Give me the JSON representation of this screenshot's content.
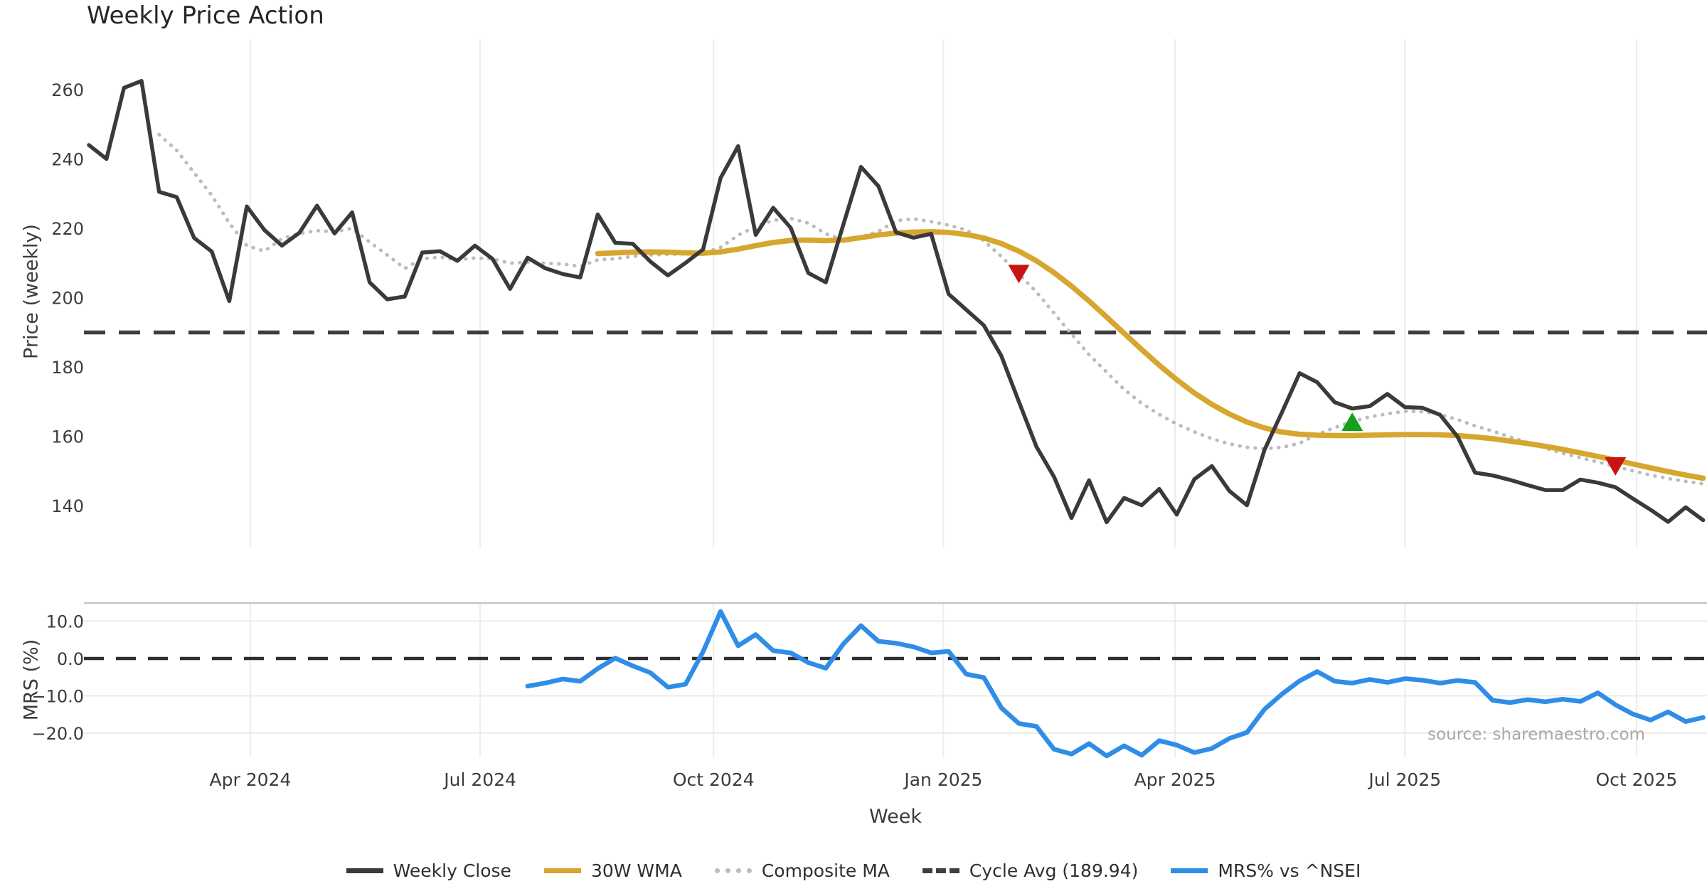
{
  "title": "Weekly Price Action",
  "source_note": "source: sharemaestro.com",
  "colors": {
    "close": "#3a3a3a",
    "wma": "#d6a62e",
    "composite": "#bcbcbc",
    "cycle_avg": "#3f3f3f",
    "mrs": "#2f8de8",
    "sell_marker": "#c81414",
    "buy_marker": "#16a01e",
    "grid_vertical": "#ededed",
    "grid_horizontal": "#ebebeb",
    "panel_border": "#c6c6c6",
    "tick_text": "#3c3c3c"
  },
  "legend": {
    "items": [
      {
        "label": "Weekly Close",
        "swatch": "solid",
        "color": "#3a3a3a"
      },
      {
        "label": "30W WMA",
        "swatch": "solid",
        "color": "#d6a62e"
      },
      {
        "label": "Composite MA",
        "swatch": "dotted",
        "color": "#bcbcbc"
      },
      {
        "label": "Cycle Avg (189.94)",
        "swatch": "dashed",
        "color": "#3f3f3f"
      },
      {
        "label": "MRS% vs ^NSEI",
        "swatch": "solid",
        "color": "#2f8de8"
      }
    ]
  },
  "chart_data": [
    {
      "type": "line",
      "title": "Weekly Price Action",
      "xlabel": "Week",
      "ylabel": "Price (weekly)",
      "x_unit": "weekly points, Feb 2024 - Nov 2025",
      "x_tick_labels": [
        "Apr 2024",
        "Jul 2024",
        "Oct 2024",
        "Jan 2025",
        "Apr 2025",
        "Jul 2025",
        "Oct 2025"
      ],
      "x_tick_weeks": [
        9.2,
        22.3,
        35.6,
        48.7,
        61.9,
        75.0,
        88.2
      ],
      "ylim": [
        128,
        274.5
      ],
      "yticks": [
        140,
        160,
        180,
        200,
        220,
        240,
        260
      ],
      "grid": "vertical-only",
      "legend_position": "lower-center-outside",
      "cycle_avg_value": 189.94,
      "series": [
        {
          "name": "Weekly Close",
          "style": "solid",
          "start_week": 0,
          "values": [
            244.0,
            240.0,
            260.5,
            262.5,
            230.5,
            229.0,
            217.2,
            213.3,
            199.0,
            226.3,
            219.5,
            215.0,
            218.7,
            226.5,
            218.5,
            224.6,
            204.4,
            199.5,
            200.3,
            213.0,
            213.4,
            210.6,
            215.0,
            211.2,
            202.5,
            211.5,
            208.5,
            206.8,
            205.8,
            224.0,
            215.8,
            215.5,
            210.4,
            206.4,
            210.0,
            213.9,
            234.5,
            243.7,
            218.1,
            225.9,
            220.1,
            207.1,
            204.4,
            221.1,
            237.7,
            232.1,
            218.8,
            217.3,
            218.4,
            201.0,
            196.5,
            192.0,
            183.2,
            170.0,
            157.0,
            148.3,
            136.4,
            147.3,
            135.2,
            142.2,
            140.1,
            144.8,
            137.4,
            147.6,
            151.4,
            144.2,
            140.1,
            156.1,
            167.0,
            178.2,
            175.6,
            169.8,
            168.0,
            168.7,
            172.2,
            168.4,
            168.2,
            166.2,
            159.9,
            149.5,
            148.7,
            147.4,
            145.9,
            144.5,
            144.5,
            147.5,
            146.6,
            145.3,
            142.0,
            138.8,
            135.3,
            139.5,
            135.8
          ]
        },
        {
          "name": "30W WMA",
          "style": "solid",
          "start_week": 29,
          "values": [
            212.7,
            212.9,
            213.1,
            213.2,
            213.1,
            212.9,
            212.8,
            213.2,
            214.0,
            215.0,
            215.9,
            216.5,
            216.6,
            216.4,
            216.6,
            217.3,
            218.1,
            218.6,
            218.9,
            219.0,
            218.8,
            218.2,
            217.2,
            215.6,
            213.4,
            210.6,
            207.2,
            203.3,
            199.0,
            194.4,
            189.7,
            185.0,
            180.5,
            176.3,
            172.5,
            169.2,
            166.4,
            164.1,
            162.4,
            161.2,
            160.6,
            160.3,
            160.2,
            160.2,
            160.3,
            160.4,
            160.5,
            160.5,
            160.4,
            160.2,
            159.8,
            159.3,
            158.6,
            157.9,
            157.1,
            156.2,
            155.2,
            154.2,
            153.1,
            152.0,
            150.9,
            149.8,
            148.8,
            147.9
          ]
        },
        {
          "name": "Composite MA",
          "style": "dotted",
          "start_week": 4,
          "values": [
            247.0,
            242.5,
            236.0,
            229.5,
            221.5,
            215.0,
            213.4,
            217.0,
            218.5,
            219.3,
            219.0,
            220.0,
            216.0,
            212.3,
            208.4,
            211.2,
            211.7,
            210.9,
            211.4,
            211.2,
            209.9,
            210.2,
            209.9,
            209.7,
            209.0,
            210.9,
            211.2,
            211.9,
            212.3,
            212.5,
            212.6,
            212.8,
            214.5,
            218.0,
            220.5,
            222.3,
            222.8,
            221.5,
            218.4,
            216.7,
            217.4,
            219.1,
            222.2,
            222.7,
            221.9,
            220.9,
            219.5,
            216.4,
            211.9,
            206.8,
            201.6,
            195.5,
            189.5,
            183.5,
            178.5,
            173.5,
            169.5,
            166.3,
            163.5,
            161.3,
            159.3,
            157.8,
            156.8,
            156.4,
            156.8,
            158.0,
            160.5,
            162.5,
            164.2,
            165.6,
            166.5,
            167.2,
            167.1,
            166.3,
            164.8,
            163.0,
            161.5,
            159.8,
            158.2,
            156.6,
            155.1,
            153.8,
            152.6,
            151.3,
            150.0,
            148.8,
            147.8,
            147.0,
            146.3
          ]
        },
        {
          "name": "Cycle Avg (189.94)",
          "style": "dashed",
          "constant_value": 189.94
        }
      ],
      "markers": [
        {
          "type": "sell",
          "shape": "triangle-down",
          "week": 53,
          "value": 206.8
        },
        {
          "type": "buy",
          "shape": "triangle-up",
          "week": 72,
          "value": 164.2
        },
        {
          "type": "sell",
          "shape": "triangle-down",
          "week": 87,
          "value": 151.3
        }
      ]
    },
    {
      "type": "line",
      "xlabel": "Week",
      "ylabel": "MRS (%)",
      "ylim": [
        -27,
        15
      ],
      "yticks": [
        10,
        0,
        -10,
        -20
      ],
      "ytick_labels": [
        "10.0",
        "0.0",
        "−10.0",
        "−20.0"
      ],
      "zero_line": "dashed",
      "series": [
        {
          "name": "MRS% vs ^NSEI",
          "style": "solid",
          "start_week": 25,
          "values": [
            -7.4,
            -6.6,
            -5.5,
            -6.1,
            -2.7,
            0.1,
            -2.0,
            -3.8,
            -7.7,
            -6.9,
            1.8,
            12.6,
            3.4,
            6.4,
            2.1,
            1.5,
            -1.1,
            -2.6,
            3.9,
            8.8,
            4.6,
            4.1,
            3.1,
            1.5,
            1.9,
            -4.2,
            -5.1,
            -13.2,
            -17.4,
            -18.2,
            -24.3,
            -25.6,
            -22.8,
            -26.1,
            -23.4,
            -25.9,
            -22.0,
            -23.2,
            -25.2,
            -24.1,
            -21.4,
            -19.8,
            -13.6,
            -9.5,
            -6.0,
            -3.5,
            -6.1,
            -6.6,
            -5.6,
            -6.4,
            -5.4,
            -5.8,
            -6.6,
            -5.9,
            -6.4,
            -11.2,
            -11.8,
            -11.0,
            -11.6,
            -10.9,
            -11.5,
            -9.2,
            -12.4,
            -14.9,
            -16.5,
            -14.3,
            -16.9,
            -15.8
          ]
        }
      ]
    }
  ]
}
